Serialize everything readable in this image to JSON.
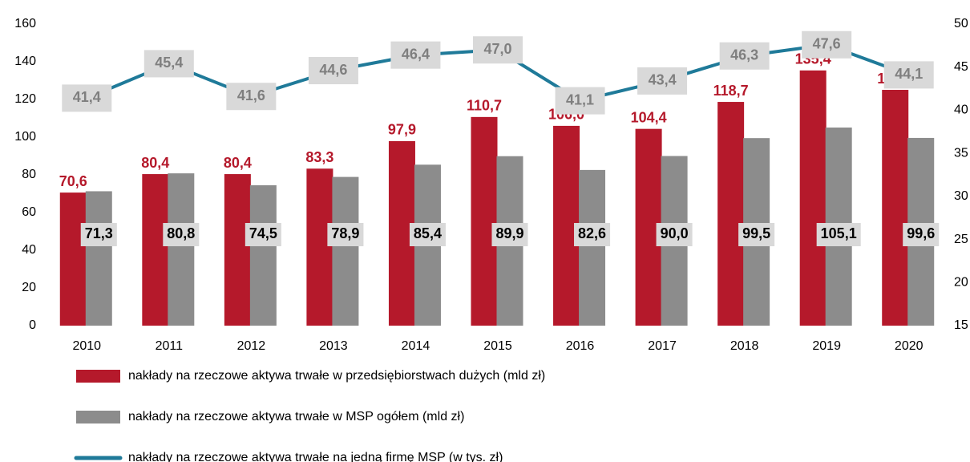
{
  "chart_data": {
    "type": "bar",
    "categories": [
      "2010",
      "2011",
      "2012",
      "2013",
      "2014",
      "2015",
      "2016",
      "2017",
      "2018",
      "2019",
      "2020"
    ],
    "series": [
      {
        "name": "nakłady na rzeczowe aktywa trwałe w przedsiębiorstwach dużych (mld zł)",
        "type": "bar",
        "color": "#b5192b",
        "values": [
          70.6,
          80.4,
          80.4,
          83.3,
          97.9,
          110.7,
          106.0,
          104.4,
          118.7,
          135.4,
          125.1
        ],
        "value_labels": [
          "70,6",
          "80,4",
          "80,4",
          "83,3",
          "97,9",
          "110,7",
          "106,0",
          "104,4",
          "118,7",
          "135,4",
          "125,1"
        ]
      },
      {
        "name": "nakłady na rzeczowe aktywa trwałe w MSP ogółem (mld zł)",
        "type": "bar",
        "color": "#8c8c8c",
        "values": [
          71.3,
          80.8,
          74.5,
          78.9,
          85.4,
          89.9,
          82.6,
          90.0,
          99.5,
          105.1,
          99.6
        ],
        "value_labels": [
          "71,3",
          "80,8",
          "74,5",
          "78,9",
          "85,4",
          "89,9",
          "82,6",
          "90,0",
          "99,5",
          "105,1",
          "99,6"
        ]
      },
      {
        "name": "nakłady na rzeczowe aktywa trwałe na jedną firmę MSP (w tys. zł)",
        "type": "line",
        "color": "#1f7a99",
        "axis": "y2",
        "values": [
          41.4,
          45.4,
          41.6,
          44.6,
          46.4,
          47.0,
          41.1,
          43.4,
          46.3,
          47.6,
          44.1
        ],
        "value_labels": [
          "41,4",
          "45,4",
          "41,6",
          "44,6",
          "46,4",
          "47,0",
          "41,1",
          "43,4",
          "46,3",
          "47,6",
          "44,1"
        ]
      }
    ],
    "ylim": [
      0,
      160
    ],
    "yticks": [
      0,
      20,
      40,
      60,
      80,
      100,
      120,
      140,
      160
    ],
    "y2lim": [
      15,
      50
    ],
    "y2ticks": [
      15,
      20,
      25,
      30,
      35,
      40,
      45,
      50
    ],
    "grid": false
  }
}
